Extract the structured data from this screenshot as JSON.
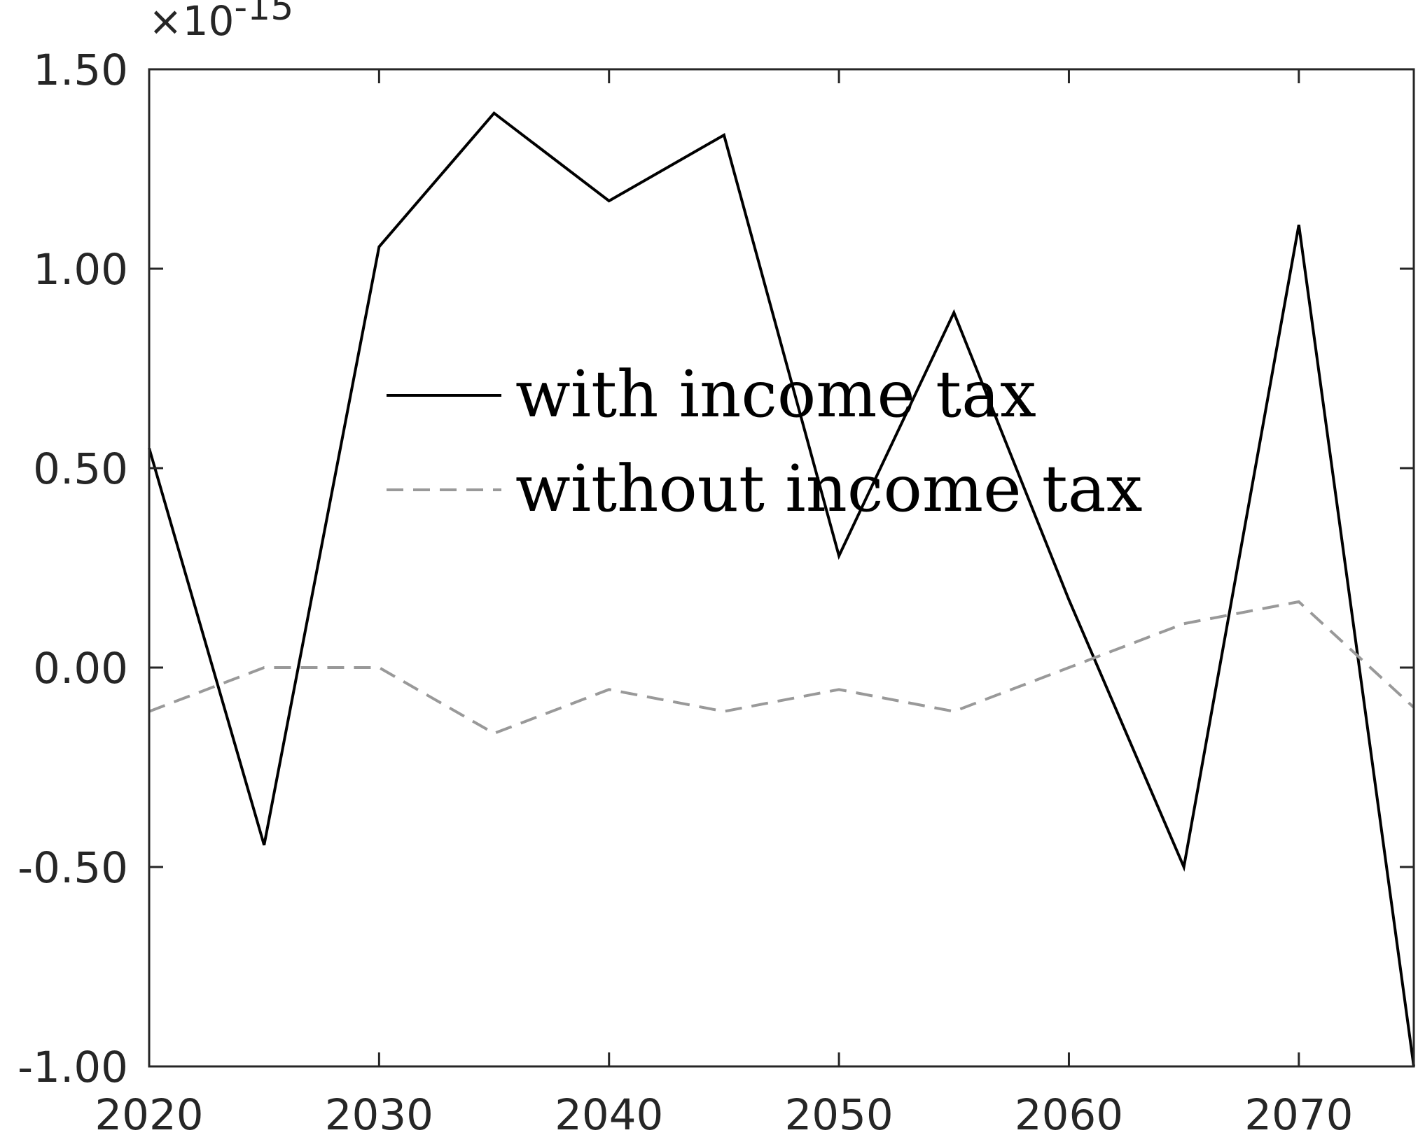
{
  "chart_data": {
    "type": "line",
    "title": "",
    "xlabel": "",
    "ylabel": "",
    "xlim": [
      2020,
      2075
    ],
    "ylim": [
      -1.0,
      1.5
    ],
    "y_exponent": {
      "base": "×10",
      "power": "-15"
    },
    "x_ticks": [
      2020,
      2030,
      2040,
      2050,
      2060,
      2070
    ],
    "x_tick_labels": [
      "2020",
      "2030",
      "2040",
      "2050",
      "2060",
      "2070"
    ],
    "y_ticks": [
      -1.0,
      -0.5,
      0.0,
      0.5,
      1.0,
      1.5
    ],
    "y_tick_labels": [
      "-1.00",
      "-0.50",
      "0.00",
      "0.50",
      "1.00",
      "1.50"
    ],
    "grid": false,
    "legend_position": "center",
    "x": [
      2020,
      2025,
      2030,
      2035,
      2040,
      2045,
      2050,
      2055,
      2060,
      2065,
      2070,
      2075
    ],
    "series": [
      {
        "name": "with income tax",
        "color": "#000000",
        "dash": "solid",
        "values": [
          0.55,
          -0.445,
          1.055,
          1.39,
          1.17,
          1.335,
          0.28,
          0.89,
          0.17,
          -0.5,
          1.11,
          -1.0
        ]
      },
      {
        "name": "without income tax",
        "color": "#999999",
        "dash": "dashed",
        "values": [
          -0.11,
          0.0,
          0.0,
          -0.165,
          -0.055,
          -0.11,
          -0.055,
          -0.11,
          0.0,
          0.11,
          0.165,
          -0.1
        ]
      }
    ]
  }
}
